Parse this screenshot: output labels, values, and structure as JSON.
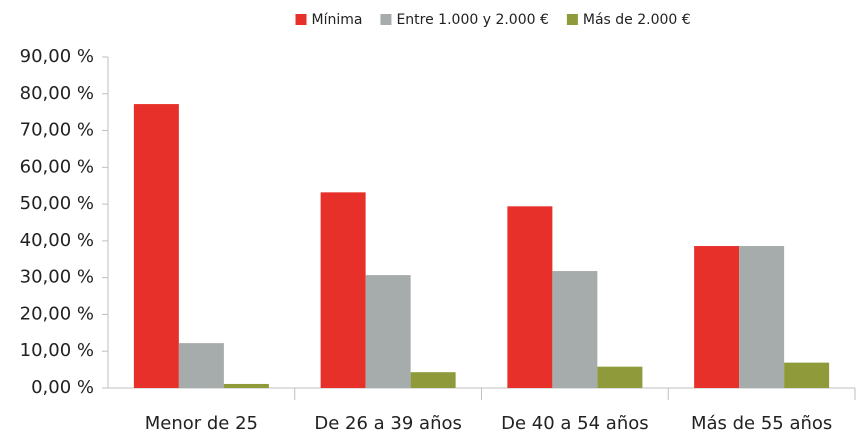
{
  "chart_data": {
    "type": "bar",
    "categories": [
      "Menor de 25",
      "De 26 a 39 años",
      "De 40 a 54 años",
      "Más de 55 años"
    ],
    "series": [
      {
        "name": "Mínima",
        "color": "#e8302a",
        "values": [
          77.2,
          53.2,
          49.4,
          38.6
        ]
      },
      {
        "name": "Entre 1.000 y 2.000 €",
        "color": "#a5acab",
        "values": [
          12.2,
          30.7,
          31.8,
          38.6
        ]
      },
      {
        "name": "Más de 2.000 €",
        "color": "#8f9a3a",
        "values": [
          1.1,
          4.3,
          5.8,
          6.9
        ]
      }
    ],
    "ylim": [
      0,
      90
    ],
    "yticks": [
      {
        "value": 0,
        "label": "0,00 %"
      },
      {
        "value": 10,
        "label": "10,00 %"
      },
      {
        "value": 20,
        "label": "20,00 %"
      },
      {
        "value": 30,
        "label": "30,00 %"
      },
      {
        "value": 40,
        "label": "40,00 %"
      },
      {
        "value": 50,
        "label": "50,00 %"
      },
      {
        "value": 60,
        "label": "60,00 %"
      },
      {
        "value": 70,
        "label": "70,00 %"
      },
      {
        "value": 80,
        "label": "80,00 %"
      },
      {
        "value": 90,
        "label": "90,00 %"
      }
    ],
    "grid": false,
    "legend": "top"
  }
}
